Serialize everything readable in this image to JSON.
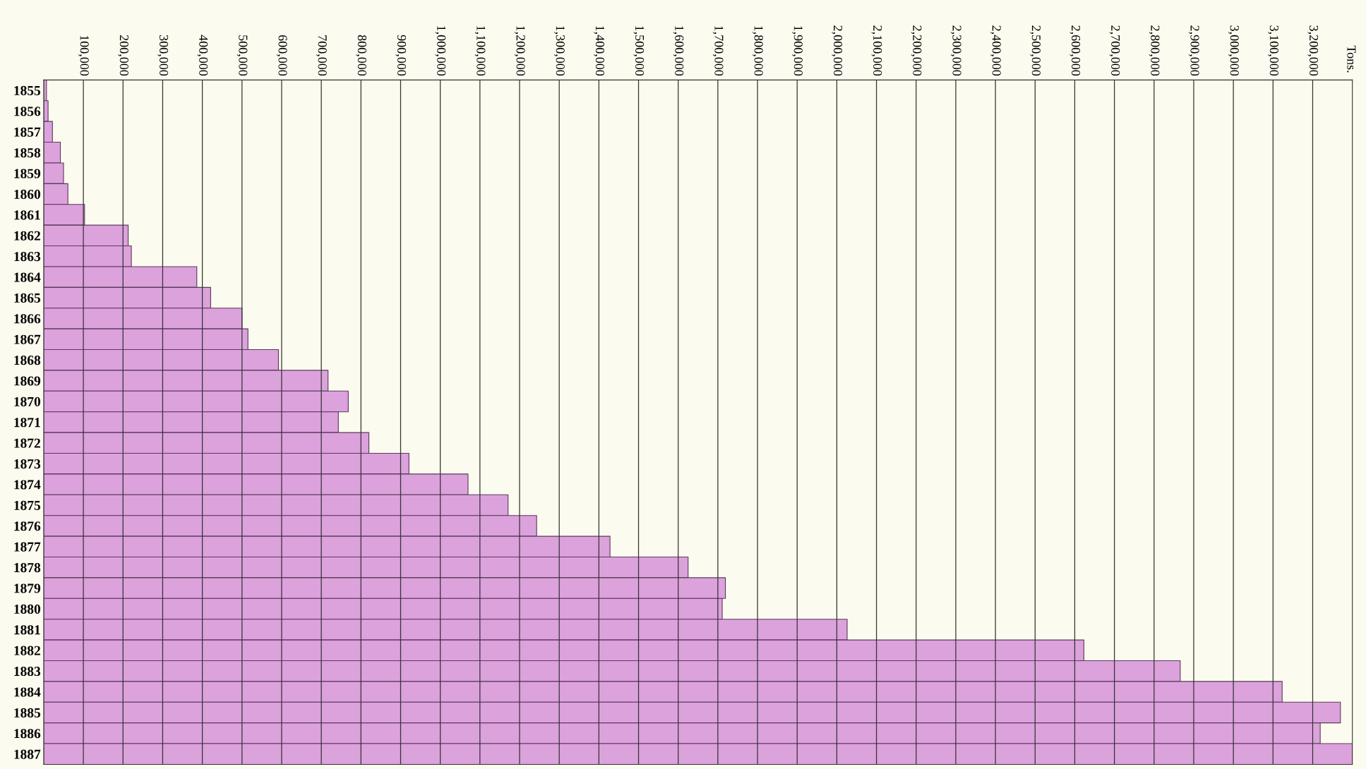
{
  "chart_data": {
    "type": "bar",
    "orientation": "horizontal",
    "annotations": [
      "Tons."
    ],
    "categories": [
      "1855",
      "1856",
      "1857",
      "1858",
      "1859",
      "1860",
      "1861",
      "1862",
      "1863",
      "1864",
      "1865",
      "1866",
      "1867",
      "1868",
      "1869",
      "1870",
      "1871",
      "1872",
      "1873",
      "1874",
      "1875",
      "1876",
      "1877",
      "1878",
      "1879",
      "1880",
      "1881",
      "1882",
      "1883",
      "1884",
      "1885",
      "1886",
      "1887"
    ],
    "values": [
      7000,
      11000,
      22000,
      42000,
      50000,
      61000,
      103000,
      213000,
      221000,
      386000,
      421000,
      500000,
      515000,
      592000,
      717000,
      768000,
      743000,
      820000,
      921000,
      1070000,
      1171000,
      1243000,
      1428000,
      1625000,
      1719000,
      1711000,
      2026000,
      2623000,
      2866000,
      3123000,
      3270000,
      3219000,
      3300000
    ],
    "color": "#dca2dc",
    "xlim": [
      0,
      3300000
    ],
    "xticks": [
      {
        "value": 100000,
        "label": "100,000"
      },
      {
        "value": 200000,
        "label": "200,000"
      },
      {
        "value": 300000,
        "label": "300,000"
      },
      {
        "value": 400000,
        "label": "400,000"
      },
      {
        "value": 500000,
        "label": "500,000"
      },
      {
        "value": 600000,
        "label": "600,000"
      },
      {
        "value": 700000,
        "label": "700,000"
      },
      {
        "value": 800000,
        "label": "800,000"
      },
      {
        "value": 900000,
        "label": "900,000"
      },
      {
        "value": 1000000,
        "label": "1,000,000"
      },
      {
        "value": 1100000,
        "label": "1,100,000"
      },
      {
        "value": 1200000,
        "label": "1,200,000"
      },
      {
        "value": 1300000,
        "label": "1,300,000"
      },
      {
        "value": 1400000,
        "label": "1,400,000"
      },
      {
        "value": 1500000,
        "label": "1,500,000"
      },
      {
        "value": 1600000,
        "label": "1,600,000"
      },
      {
        "value": 1700000,
        "label": "1,700,000"
      },
      {
        "value": 1800000,
        "label": "1,800,000"
      },
      {
        "value": 1900000,
        "label": "1,900,000"
      },
      {
        "value": 2000000,
        "label": "2,000,000"
      },
      {
        "value": 2100000,
        "label": "2,100,000"
      },
      {
        "value": 2200000,
        "label": "2,200,000"
      },
      {
        "value": 2300000,
        "label": "2,300,000"
      },
      {
        "value": 2400000,
        "label": "2,400,000"
      },
      {
        "value": 2500000,
        "label": "2,500,000"
      },
      {
        "value": 2600000,
        "label": "2,600,000"
      },
      {
        "value": 2700000,
        "label": "2,700,000"
      },
      {
        "value": 2800000,
        "label": "2,800,000"
      },
      {
        "value": 2900000,
        "label": "2,900,000"
      },
      {
        "value": 3000000,
        "label": "3,000,000"
      },
      {
        "value": 3100000,
        "label": "3,100,000"
      },
      {
        "value": 3200000,
        "label": "3,200,000"
      }
    ],
    "grid": "x"
  }
}
